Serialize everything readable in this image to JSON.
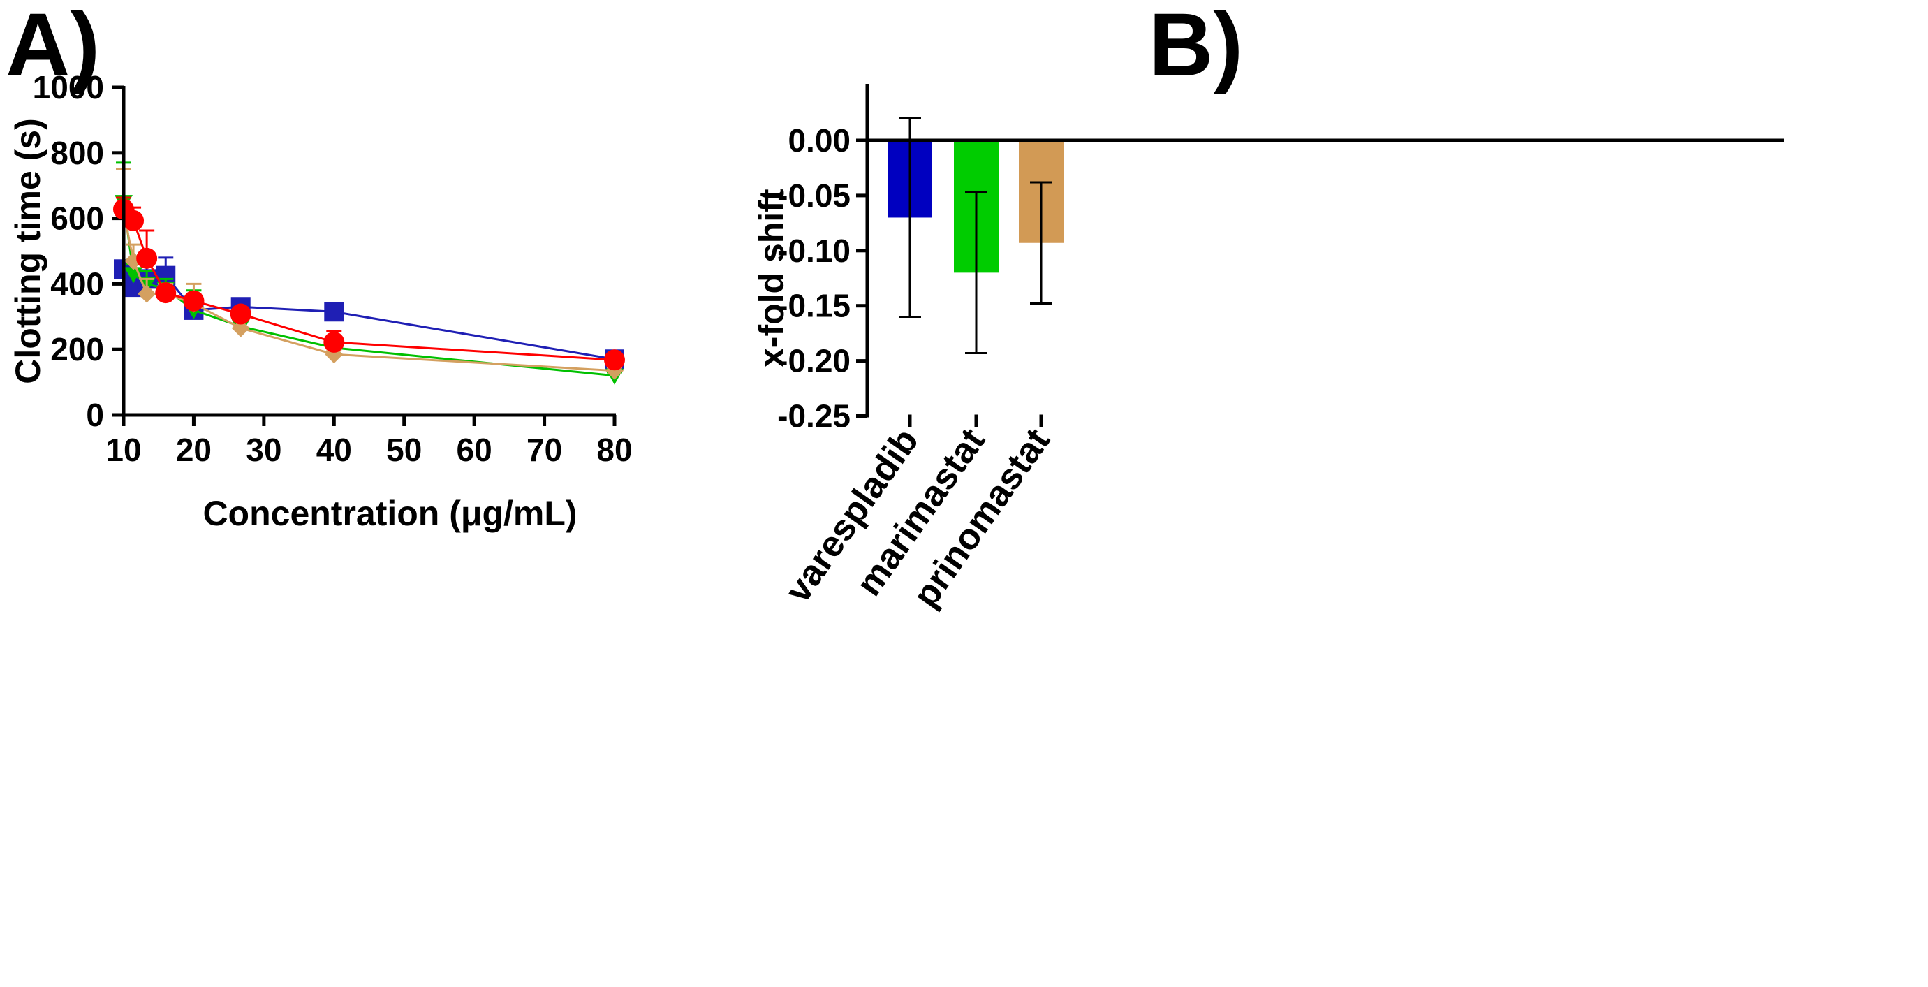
{
  "chart_data": [
    {
      "panel_label": "A)",
      "type": "line",
      "xlabel": "Concentration (μg/mL)",
      "ylabel": "Clotting time (s)",
      "xlim": [
        10,
        80
      ],
      "ylim": [
        0,
        1000
      ],
      "xticks": [
        10,
        20,
        30,
        40,
        50,
        60,
        70,
        80
      ],
      "yticks": [
        0,
        200,
        400,
        600,
        800,
        1000
      ],
      "grid": false,
      "legend": "none",
      "series": [
        {
          "color": "#1f1fb4",
          "marker": "square",
          "x": [
            10,
            11.4,
            13.3,
            16,
            20,
            26.7,
            40,
            80
          ],
          "y": [
            445,
            390,
            415,
            425,
            320,
            330,
            315,
            170
          ],
          "err": [
            0,
            0,
            60,
            55,
            0,
            0,
            0,
            0
          ]
        },
        {
          "color": "#00c000",
          "marker": "triangle-down",
          "x": [
            10,
            11.4,
            13.3,
            16,
            20,
            26.7,
            40,
            80
          ],
          "y": [
            650,
            430,
            400,
            385,
            320,
            270,
            205,
            120
          ],
          "err": [
            120,
            30,
            40,
            30,
            60,
            40,
            20,
            10
          ]
        },
        {
          "color": "#d4a060",
          "marker": "diamond",
          "x": [
            10,
            11.4,
            13.3,
            16,
            20,
            26.7,
            40,
            80
          ],
          "y": [
            620,
            470,
            370,
            370,
            340,
            265,
            185,
            135
          ],
          "err": [
            130,
            50,
            45,
            30,
            60,
            40,
            15,
            10
          ]
        },
        {
          "color": "#ff0000",
          "marker": "circle",
          "x": [
            10,
            11.4,
            13.3,
            16,
            20,
            26.7,
            40,
            80
          ],
          "y": [
            628,
            593,
            478,
            373,
            348,
            308,
            222,
            168
          ],
          "err": [
            35,
            40,
            85,
            20,
            20,
            20,
            35,
            5
          ]
        }
      ]
    },
    {
      "panel_label": "B)",
      "type": "bar",
      "categories": [
        "varespladib",
        "marimastat",
        "prinomastat"
      ],
      "values": [
        -0.07,
        -0.12,
        -0.093
      ],
      "err": [
        0.09,
        0.073,
        0.055
      ],
      "colors": [
        "#0000c0",
        "#00cc00",
        "#d29a55"
      ],
      "xlabel": "",
      "ylabel": "x-fold shift",
      "ylim": [
        -0.25,
        0.05
      ],
      "yticks": [
        0.0,
        -0.05,
        -0.1,
        -0.15,
        -0.2,
        -0.25
      ],
      "ytick_labels": [
        "0.00",
        "-0.05",
        "-0.10",
        "-0.15",
        "-0.20",
        "-0.25"
      ],
      "grid": false,
      "legend": "none"
    }
  ]
}
